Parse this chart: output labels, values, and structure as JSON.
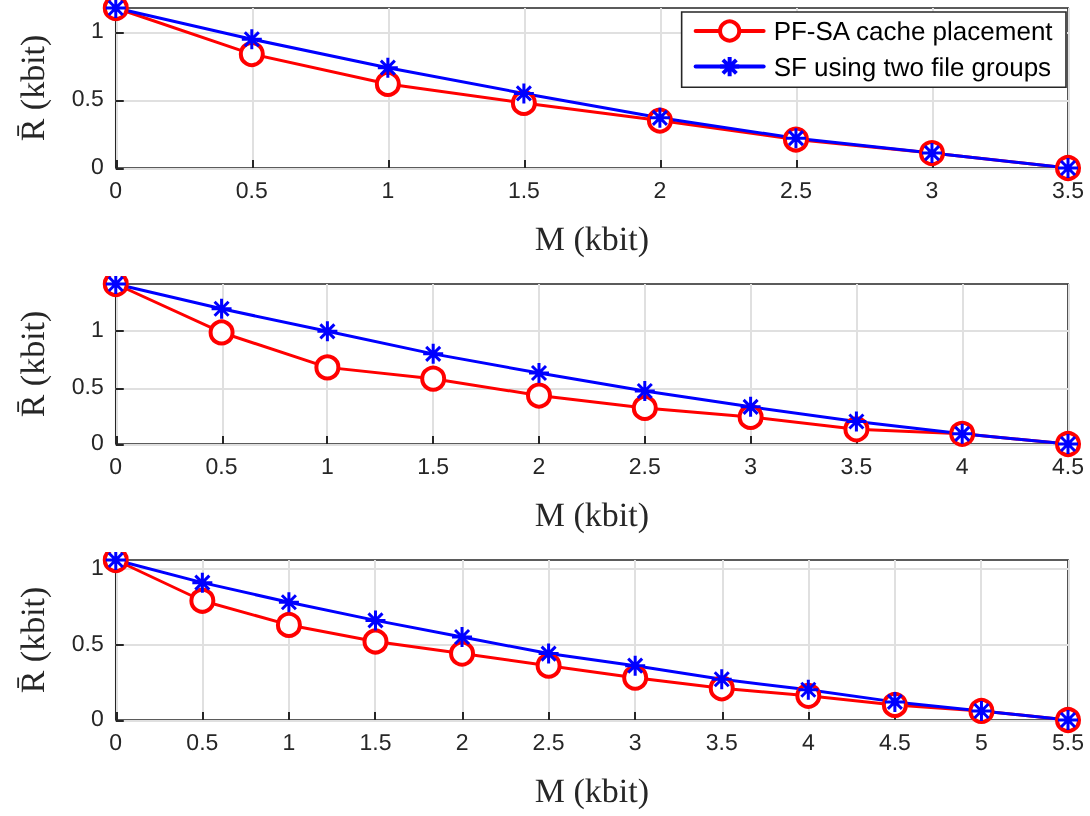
{
  "chart_data": [
    {
      "type": "line",
      "xlabel": "M (kbit)",
      "ylabel": "R̄ (kbit)",
      "x": [
        0,
        0.5,
        1,
        1.5,
        2,
        2.5,
        3,
        3.5
      ],
      "xlim": [
        0,
        3.5
      ],
      "xticks": [
        0,
        0.5,
        1,
        1.5,
        2,
        2.5,
        3,
        3.5
      ],
      "ylim": [
        0,
        1.18
      ],
      "yticks": [
        0,
        0.5,
        1
      ],
      "grid": true,
      "legend": "top right",
      "series": [
        {
          "name": "PF-SA cache placement",
          "color": "#ff0000",
          "marker": "circle",
          "values": [
            1.18,
            0.84,
            0.62,
            0.48,
            0.35,
            0.21,
            0.11,
            0
          ]
        },
        {
          "name": "SF using two file groups",
          "color": "#0000ff",
          "marker": "cross",
          "values": [
            1.18,
            0.95,
            0.74,
            0.55,
            0.37,
            0.22,
            0.11,
            0
          ]
        }
      ]
    },
    {
      "type": "line",
      "xlabel": "M (kbit)",
      "ylabel": "R̄ (kbit)",
      "x": [
        0,
        0.5,
        1,
        1.5,
        2,
        2.5,
        3,
        3.5,
        4,
        4.5
      ],
      "xlim": [
        0,
        4.5
      ],
      "xticks": [
        0,
        0.5,
        1,
        1.5,
        2,
        2.5,
        3,
        3.5,
        4,
        4.5
      ],
      "ylim": [
        0,
        1.42
      ],
      "yticks": [
        0,
        0.5,
        1
      ],
      "grid": true,
      "series": [
        {
          "color": "#ff0000",
          "marker": "circle",
          "values": [
            1.42,
            0.99,
            0.68,
            0.58,
            0.43,
            0.32,
            0.24,
            0.13,
            0.09,
            0
          ]
        },
        {
          "color": "#0000ff",
          "marker": "cross",
          "values": [
            1.42,
            1.2,
            1.0,
            0.8,
            0.63,
            0.47,
            0.33,
            0.2,
            0.09,
            0
          ]
        }
      ]
    },
    {
      "type": "line",
      "xlabel": "M (kbit)",
      "ylabel": "R̄ (kbit)",
      "x": [
        0,
        0.5,
        1,
        1.5,
        2,
        2.5,
        3,
        3.5,
        4,
        4.5,
        5,
        5.5
      ],
      "xlim": [
        0,
        5.5
      ],
      "xticks": [
        0,
        0.5,
        1,
        1.5,
        2,
        2.5,
        3,
        3.5,
        4,
        4.5,
        5,
        5.5
      ],
      "ylim": [
        0,
        1.06
      ],
      "yticks": [
        0,
        0.5,
        1
      ],
      "grid": true,
      "series": [
        {
          "color": "#ff0000",
          "marker": "circle",
          "values": [
            1.06,
            0.79,
            0.63,
            0.52,
            0.44,
            0.36,
            0.28,
            0.21,
            0.16,
            0.1,
            0.06,
            0
          ]
        },
        {
          "color": "#0000ff",
          "marker": "cross",
          "values": [
            1.06,
            0.91,
            0.78,
            0.66,
            0.55,
            0.44,
            0.36,
            0.27,
            0.2,
            0.12,
            0.06,
            0
          ]
        }
      ]
    }
  ]
}
